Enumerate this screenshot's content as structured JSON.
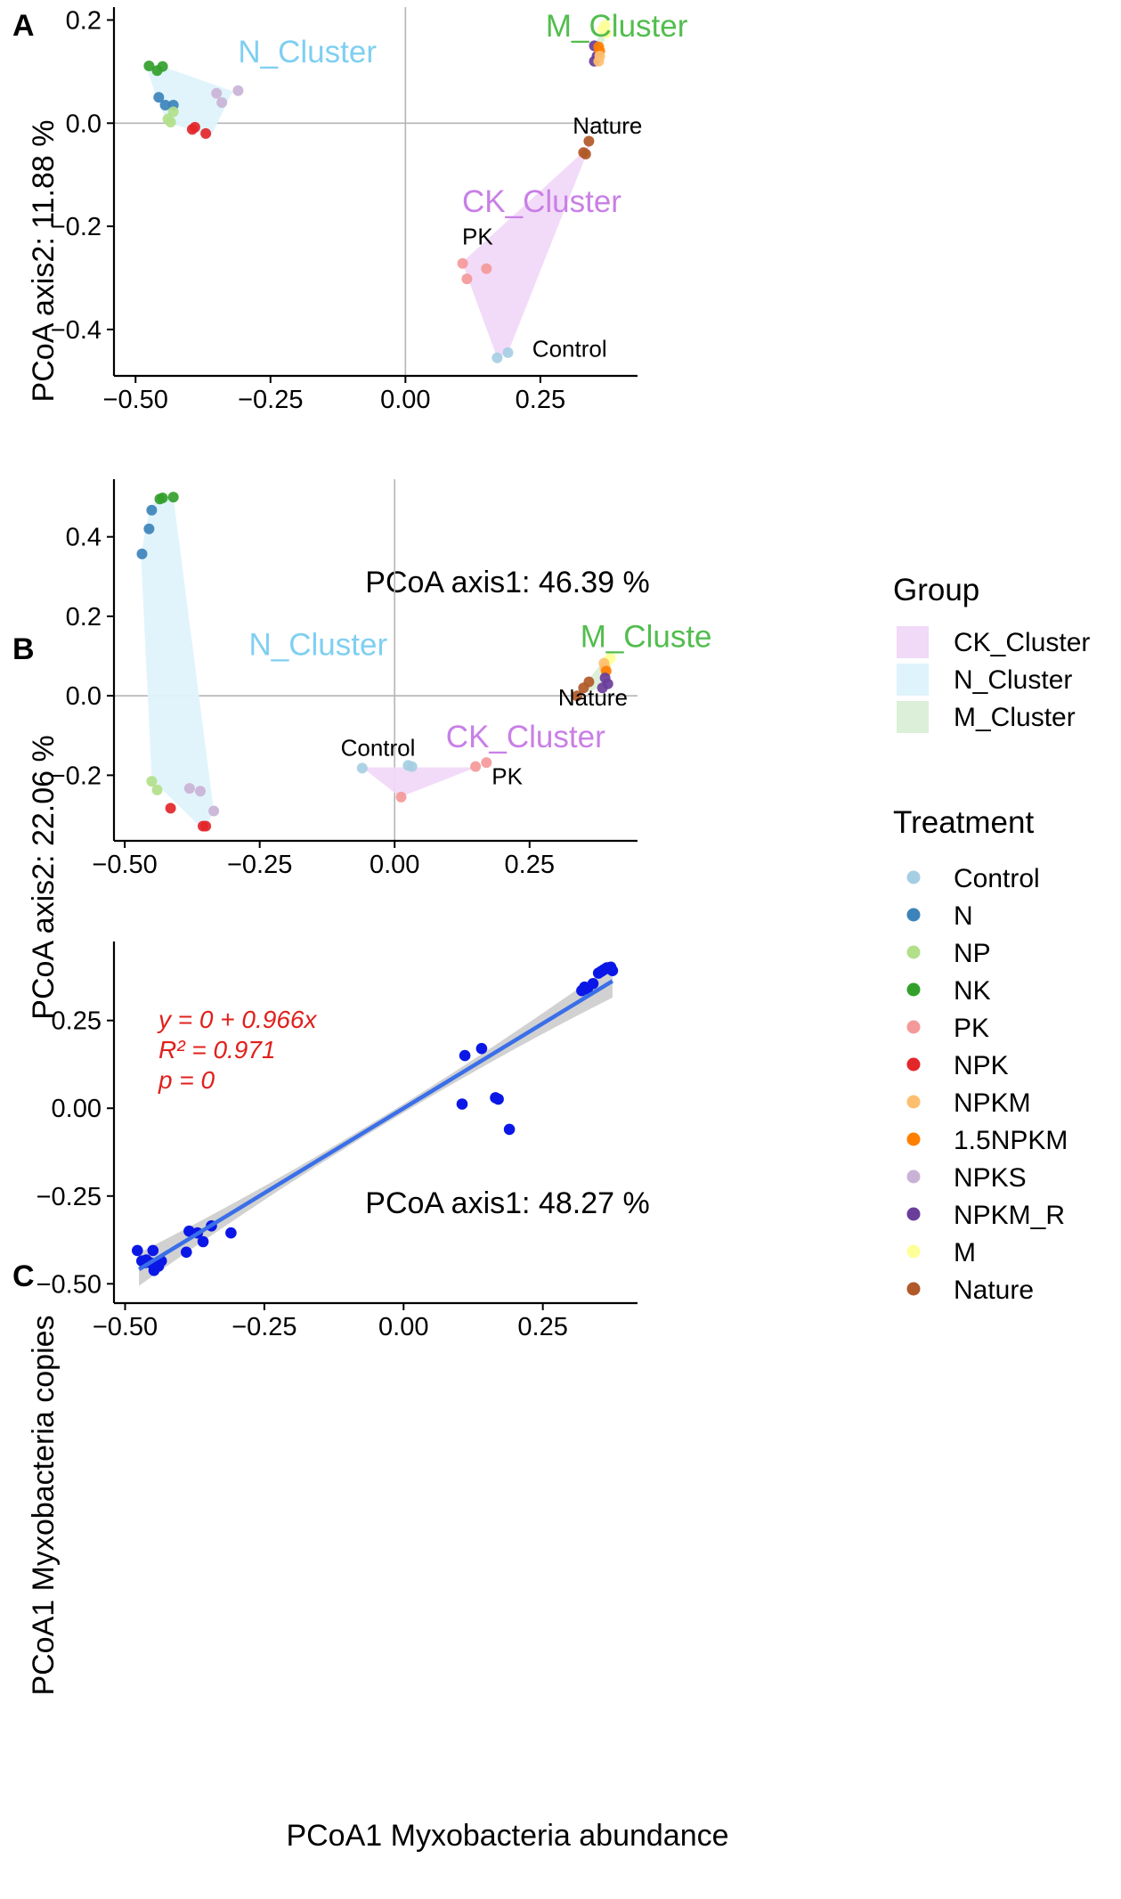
{
  "colors": {
    "Control": "#a6cee3",
    "N": "#3c83bb",
    "NP": "#b2df8a",
    "NK": "#33a02c",
    "PK": "#f4999a",
    "NPK": "#e3262a",
    "NPKM": "#fdbf6f",
    "1.5NPKM": "#ff7f00",
    "NPKS": "#cab2d6",
    "NPKM_R": "#6a3d9a",
    "M": "#ffff99",
    "Nature": "#b15928",
    "CK_Cluster": "#f1d9f8",
    "N_Cluster": "#dff3fc",
    "M_Cluster": "#dcefd9",
    "CK_Cluster_label": "#c97fe6",
    "N_Cluster_label": "#7fcff1",
    "M_Cluster_label": "#52bd4e",
    "regression_line": "#3b6fe8",
    "regression_band": "#c9c9c9",
    "point_C": "#0a17e6",
    "equation": "#e0201b"
  },
  "legend": {
    "group_title": "Group",
    "groups": [
      "CK_Cluster",
      "N_Cluster",
      "M_Cluster"
    ],
    "treatment_title": "Treatment",
    "treatments": [
      "Control",
      "N",
      "NP",
      "NK",
      "PK",
      "NPK",
      "NPKM",
      "1.5NPKM",
      "NPKS",
      "NPKM_R",
      "M",
      "Nature"
    ]
  },
  "chart_data": [
    {
      "type": "scatter",
      "panel": "A",
      "xlabel": "PCoA axis1:  46.39 %",
      "ylabel": "PCoA axis2:  11.88 %",
      "xlim": [
        -0.54,
        0.43
      ],
      "ylim": [
        -0.49,
        0.225
      ],
      "xticks": [
        -0.5,
        -0.25,
        0,
        0.25
      ],
      "xtick_labels": [
        "−0.50",
        "−0.25",
        "0.00",
        "0.25"
      ],
      "yticks": [
        0.2,
        0,
        -0.2,
        -0.4
      ],
      "ytick_labels": [
        "0.2",
        "0.0",
        "−0.2",
        "−0.4"
      ],
      "hulls": [
        {
          "group": "N_Cluster",
          "points": [
            [
              -0.48,
              0.11
            ],
            [
              -0.45,
              0.11
            ],
            [
              -0.32,
              0.062
            ],
            [
              -0.36,
              -0.025
            ],
            [
              -0.37,
              -0.02
            ],
            [
              -0.44,
              0.0
            ],
            [
              -0.46,
              0.045
            ]
          ]
        },
        {
          "group": "M_Cluster",
          "points": [
            [
              0.35,
              0.15
            ],
            [
              0.37,
              0.195
            ],
            [
              0.375,
              0.185
            ],
            [
              0.36,
              0.13
            ],
            [
              0.35,
              0.125
            ]
          ]
        },
        {
          "group": "CK_Cluster",
          "points": [
            [
              0.33,
              -0.055
            ],
            [
              0.345,
              -0.035
            ],
            [
              0.19,
              -0.445
            ],
            [
              0.17,
              -0.455
            ],
            [
              0.105,
              -0.27
            ]
          ]
        }
      ],
      "points": [
        {
          "t": "NK",
          "x": -0.475,
          "y": 0.111
        },
        {
          "t": "NK",
          "x": -0.46,
          "y": 0.102
        },
        {
          "t": "NK",
          "x": -0.45,
          "y": 0.11
        },
        {
          "t": "N",
          "x": -0.457,
          "y": 0.05
        },
        {
          "t": "N",
          "x": -0.445,
          "y": 0.035
        },
        {
          "t": "N",
          "x": -0.43,
          "y": 0.035
        },
        {
          "t": "NP",
          "x": -0.44,
          "y": 0.008
        },
        {
          "t": "NP",
          "x": -0.435,
          "y": 0.002
        },
        {
          "t": "NP",
          "x": -0.43,
          "y": 0.022
        },
        {
          "t": "NPKS",
          "x": -0.35,
          "y": 0.058
        },
        {
          "t": "NPKS",
          "x": -0.31,
          "y": 0.063
        },
        {
          "t": "NPKS",
          "x": -0.34,
          "y": 0.04
        },
        {
          "t": "NPK",
          "x": -0.395,
          "y": -0.012
        },
        {
          "t": "NPK",
          "x": -0.39,
          "y": -0.008
        },
        {
          "t": "NPK",
          "x": -0.37,
          "y": -0.02
        },
        {
          "t": "M",
          "x": 0.37,
          "y": 0.19
        },
        {
          "t": "M",
          "x": 0.365,
          "y": 0.182
        },
        {
          "t": "M",
          "x": 0.372,
          "y": 0.175
        },
        {
          "t": "NPKM_R",
          "x": 0.35,
          "y": 0.15
        },
        {
          "t": "NPKM_R",
          "x": 0.35,
          "y": 0.12
        },
        {
          "t": "NPKM_R",
          "x": 0.355,
          "y": 0.13
        },
        {
          "t": "1.5NPKM",
          "x": 0.358,
          "y": 0.148
        },
        {
          "t": "1.5NPKM",
          "x": 0.36,
          "y": 0.14
        },
        {
          "t": "NPKM",
          "x": 0.36,
          "y": 0.13
        },
        {
          "t": "NPKM",
          "x": 0.358,
          "y": 0.12
        },
        {
          "t": "Nature",
          "x": 0.34,
          "y": -0.035
        },
        {
          "t": "Nature",
          "x": 0.33,
          "y": -0.057
        },
        {
          "t": "Nature",
          "x": 0.334,
          "y": -0.06
        },
        {
          "t": "PK",
          "x": 0.106,
          "y": -0.272
        },
        {
          "t": "PK",
          "x": 0.15,
          "y": -0.282
        },
        {
          "t": "PK",
          "x": 0.114,
          "y": -0.302
        },
        {
          "t": "Control",
          "x": 0.19,
          "y": -0.445
        },
        {
          "t": "Control",
          "x": 0.17,
          "y": -0.455
        }
      ],
      "labels": [
        {
          "text": "N_Cluster",
          "group": "N_Cluster",
          "x": -0.31,
          "y": 0.118
        },
        {
          "text": "M_Cluster",
          "group": "M_Cluster",
          "x": 0.26,
          "y": 0.168
        },
        {
          "text": "CK_Cluster",
          "group": "CK_Cluster",
          "x": 0.105,
          "y": -0.172
        },
        {
          "text": "Nature",
          "x": 0.31,
          "y": -0.02
        },
        {
          "text": "PK",
          "x": 0.105,
          "y": -0.235
        },
        {
          "text": "Control",
          "x": 0.235,
          "y": -0.453
        }
      ]
    },
    {
      "type": "scatter",
      "panel": "B",
      "xlabel": "PCoA axis1:  48.27 %",
      "ylabel": "PCoA axis2:  22.06 %",
      "xlim": [
        -0.52,
        0.45
      ],
      "ylim": [
        -0.365,
        0.545
      ],
      "xticks": [
        -0.5,
        -0.25,
        0,
        0.25
      ],
      "xtick_labels": [
        "−0.50",
        "−0.25",
        "0.00",
        "0.25"
      ],
      "yticks": [
        0.4,
        0.2,
        0,
        -0.2
      ],
      "ytick_labels": [
        "0.4",
        "0.2",
        "0.0",
        "−0.2"
      ],
      "hulls": [
        {
          "group": "N_Cluster",
          "points": [
            [
              -0.47,
              0.355
            ],
            [
              -0.455,
              0.465
            ],
            [
              -0.44,
              0.498
            ],
            [
              -0.41,
              0.5
            ],
            [
              -0.335,
              -0.29
            ],
            [
              -0.35,
              -0.33
            ],
            [
              -0.36,
              -0.33
            ],
            [
              -0.45,
              -0.21
            ]
          ]
        },
        {
          "group": "M_Cluster",
          "points": [
            [
              0.335,
              0.0
            ],
            [
              0.385,
              0.085
            ],
            [
              0.4,
              0.1
            ],
            [
              0.4,
              0.07
            ],
            [
              0.38,
              0.02
            ]
          ]
        },
        {
          "group": "CK_Cluster",
          "points": [
            [
              -0.06,
              -0.18
            ],
            [
              0.15,
              -0.18
            ],
            [
              0.17,
              -0.17
            ],
            [
              0.01,
              -0.255
            ]
          ]
        }
      ],
      "points": [
        {
          "t": "NK",
          "x": -0.435,
          "y": 0.495
        },
        {
          "t": "NK",
          "x": -0.43,
          "y": 0.498
        },
        {
          "t": "NK",
          "x": -0.41,
          "y": 0.5
        },
        {
          "t": "N",
          "x": -0.45,
          "y": 0.467
        },
        {
          "t": "N",
          "x": -0.455,
          "y": 0.42
        },
        {
          "t": "N",
          "x": -0.468,
          "y": 0.357
        },
        {
          "t": "NP",
          "x": -0.45,
          "y": -0.215
        },
        {
          "t": "NP",
          "x": -0.44,
          "y": -0.237
        },
        {
          "t": "NPKS",
          "x": -0.38,
          "y": -0.233
        },
        {
          "t": "NPKS",
          "x": -0.36,
          "y": -0.24
        },
        {
          "t": "NPKS",
          "x": -0.335,
          "y": -0.29
        },
        {
          "t": "NPK",
          "x": -0.415,
          "y": -0.283
        },
        {
          "t": "NPK",
          "x": -0.355,
          "y": -0.328
        },
        {
          "t": "NPK",
          "x": -0.35,
          "y": -0.328
        },
        {
          "t": "M",
          "x": 0.4,
          "y": 0.095
        },
        {
          "t": "M",
          "x": 0.395,
          "y": 0.088
        },
        {
          "t": "NPKM",
          "x": 0.388,
          "y": 0.082
        },
        {
          "t": "NPKM",
          "x": 0.39,
          "y": 0.07
        },
        {
          "t": "1.5NPKM",
          "x": 0.392,
          "y": 0.062
        },
        {
          "t": "NPKM_R",
          "x": 0.39,
          "y": 0.045
        },
        {
          "t": "NPKM_R",
          "x": 0.395,
          "y": 0.03
        },
        {
          "t": "NPKM_R",
          "x": 0.385,
          "y": 0.02
        },
        {
          "t": "Nature",
          "x": 0.36,
          "y": 0.035
        },
        {
          "t": "Nature",
          "x": 0.35,
          "y": 0.02
        },
        {
          "t": "Nature",
          "x": 0.338,
          "y": 0.0
        },
        {
          "t": "Control",
          "x": -0.06,
          "y": -0.182
        },
        {
          "t": "Control",
          "x": 0.025,
          "y": -0.175
        },
        {
          "t": "Control",
          "x": 0.032,
          "y": -0.178
        },
        {
          "t": "PK",
          "x": 0.15,
          "y": -0.178
        },
        {
          "t": "PK",
          "x": 0.17,
          "y": -0.168
        },
        {
          "t": "PK",
          "x": 0.012,
          "y": -0.255
        }
      ],
      "labels": [
        {
          "text": "N_Cluster",
          "group": "N_Cluster",
          "x": -0.27,
          "y": 0.102
        },
        {
          "text": "M_Cluste",
          "group": "M_Cluster",
          "x": 0.344,
          "y": 0.122
        },
        {
          "text": "CK_Cluster",
          "group": "CK_Cluster",
          "x": 0.095,
          "y": -0.13
        },
        {
          "text": "Nature",
          "x": 0.303,
          "y": -0.024
        },
        {
          "text": "Control",
          "x": -0.1,
          "y": -0.151
        },
        {
          "text": "PK",
          "x": 0.18,
          "y": -0.223
        }
      ]
    },
    {
      "type": "scatter",
      "panel": "C",
      "xlabel": "PCoA1 Myxobacteria abundance",
      "ylabel": "PCoA1 Myxobacteria copies",
      "xlim": [
        -0.52,
        0.42
      ],
      "ylim": [
        -0.555,
        0.475
      ],
      "xticks": [
        -0.5,
        -0.25,
        0,
        0.25
      ],
      "xtick_labels": [
        "−0.50",
        "−0.25",
        "0.00",
        "0.25"
      ],
      "yticks": [
        0.25,
        0,
        -0.25,
        -0.5
      ],
      "ytick_labels": [
        "0.25",
        "0.00",
        "−0.25",
        "−0.50"
      ],
      "regression": {
        "intercept": 0,
        "slope": 0.966,
        "x_range": [
          -0.475,
          0.375
        ]
      },
      "equation": [
        "y = 0 + 0.966x",
        "R² = 0.971",
        "p = 0"
      ],
      "points": [
        {
          "x": -0.478,
          "y": -0.405
        },
        {
          "x": -0.47,
          "y": -0.435
        },
        {
          "x": -0.465,
          "y": -0.44
        },
        {
          "x": -0.462,
          "y": -0.432
        },
        {
          "x": -0.455,
          "y": -0.44
        },
        {
          "x": -0.45,
          "y": -0.405
        },
        {
          "x": -0.448,
          "y": -0.462
        },
        {
          "x": -0.44,
          "y": -0.45
        },
        {
          "x": -0.435,
          "y": -0.435
        },
        {
          "x": -0.39,
          "y": -0.41
        },
        {
          "x": -0.385,
          "y": -0.35
        },
        {
          "x": -0.37,
          "y": -0.355
        },
        {
          "x": -0.36,
          "y": -0.38
        },
        {
          "x": -0.345,
          "y": -0.335
        },
        {
          "x": -0.31,
          "y": -0.355
        },
        {
          "x": 0.105,
          "y": 0.012
        },
        {
          "x": 0.11,
          "y": 0.15
        },
        {
          "x": 0.14,
          "y": 0.17
        },
        {
          "x": 0.165,
          "y": 0.03
        },
        {
          "x": 0.17,
          "y": 0.026
        },
        {
          "x": 0.19,
          "y": -0.06
        },
        {
          "x": 0.32,
          "y": 0.335
        },
        {
          "x": 0.325,
          "y": 0.345
        },
        {
          "x": 0.33,
          "y": 0.34
        },
        {
          "x": 0.34,
          "y": 0.355
        },
        {
          "x": 0.35,
          "y": 0.385
        },
        {
          "x": 0.355,
          "y": 0.39
        },
        {
          "x": 0.36,
          "y": 0.395
        },
        {
          "x": 0.365,
          "y": 0.4
        },
        {
          "x": 0.372,
          "y": 0.402
        },
        {
          "x": 0.375,
          "y": 0.392
        }
      ]
    }
  ]
}
